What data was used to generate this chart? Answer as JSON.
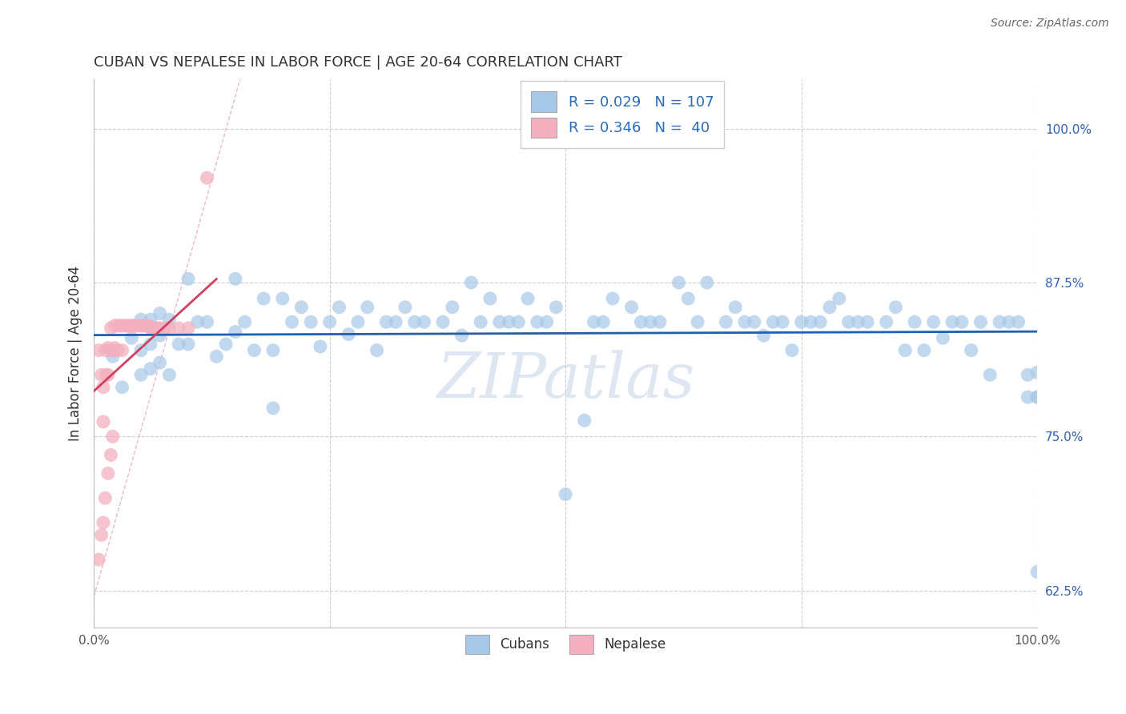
{
  "title": "CUBAN VS NEPALESE IN LABOR FORCE | AGE 20-64 CORRELATION CHART",
  "source_text": "Source: ZipAtlas.com",
  "ylabel": "In Labor Force | Age 20-64",
  "xlim": [
    0.0,
    1.0
  ],
  "ylim": [
    0.595,
    1.04
  ],
  "ytick_vals": [
    0.625,
    0.75,
    0.875,
    1.0
  ],
  "ytick_labels": [
    "62.5%",
    "75.0%",
    "87.5%",
    "100.0%"
  ],
  "blue_R": 0.029,
  "blue_N": 107,
  "pink_R": 0.346,
  "pink_N": 40,
  "blue_color": "#a8c8e8",
  "pink_color": "#f4b0c0",
  "blue_line_color": "#2060b0",
  "pink_line_color": "#d04060",
  "diag_line_color": "#e0a0b0",
  "legend_label_blue": "Cubans",
  "legend_label_pink": "Nepalese",
  "background_color": "#ffffff",
  "grid_color": "#cccccc",
  "watermark_color": "#c8d8e8",
  "blue_scatter_x": [
    0.02,
    0.03,
    0.04,
    0.05,
    0.05,
    0.05,
    0.06,
    0.06,
    0.06,
    0.07,
    0.07,
    0.07,
    0.08,
    0.08,
    0.09,
    0.1,
    0.1,
    0.11,
    0.12,
    0.13,
    0.14,
    0.15,
    0.15,
    0.16,
    0.17,
    0.18,
    0.19,
    0.19,
    0.2,
    0.21,
    0.22,
    0.23,
    0.24,
    0.25,
    0.26,
    0.27,
    0.28,
    0.29,
    0.3,
    0.31,
    0.32,
    0.33,
    0.34,
    0.35,
    0.37,
    0.38,
    0.39,
    0.4,
    0.41,
    0.42,
    0.43,
    0.44,
    0.45,
    0.46,
    0.47,
    0.48,
    0.49,
    0.5,
    0.52,
    0.53,
    0.54,
    0.55,
    0.57,
    0.58,
    0.59,
    0.6,
    0.62,
    0.63,
    0.64,
    0.65,
    0.67,
    0.68,
    0.69,
    0.7,
    0.71,
    0.72,
    0.73,
    0.74,
    0.75,
    0.76,
    0.77,
    0.78,
    0.79,
    0.8,
    0.81,
    0.82,
    0.84,
    0.85,
    0.86,
    0.87,
    0.88,
    0.89,
    0.9,
    0.91,
    0.92,
    0.93,
    0.94,
    0.95,
    0.96,
    0.97,
    0.98,
    0.99,
    0.99,
    1.0,
    1.0,
    1.0,
    1.0
  ],
  "blue_scatter_y": [
    0.815,
    0.79,
    0.83,
    0.8,
    0.82,
    0.845,
    0.805,
    0.825,
    0.845,
    0.81,
    0.832,
    0.85,
    0.8,
    0.845,
    0.825,
    0.878,
    0.825,
    0.843,
    0.843,
    0.815,
    0.825,
    0.835,
    0.878,
    0.843,
    0.82,
    0.862,
    0.82,
    0.773,
    0.862,
    0.843,
    0.855,
    0.843,
    0.823,
    0.843,
    0.855,
    0.833,
    0.843,
    0.855,
    0.82,
    0.843,
    0.843,
    0.855,
    0.843,
    0.843,
    0.843,
    0.855,
    0.832,
    0.875,
    0.843,
    0.862,
    0.843,
    0.843,
    0.843,
    0.862,
    0.843,
    0.843,
    0.855,
    0.703,
    0.763,
    0.843,
    0.843,
    0.862,
    0.855,
    0.843,
    0.843,
    0.843,
    0.875,
    0.862,
    0.843,
    0.875,
    0.843,
    0.855,
    0.843,
    0.843,
    0.832,
    0.843,
    0.843,
    0.82,
    0.843,
    0.843,
    0.843,
    0.855,
    0.862,
    0.843,
    0.843,
    0.843,
    0.843,
    0.855,
    0.82,
    0.843,
    0.82,
    0.843,
    0.83,
    0.843,
    0.843,
    0.82,
    0.843,
    0.8,
    0.843,
    0.843,
    0.843,
    0.782,
    0.8,
    0.782,
    0.802,
    0.782,
    0.64
  ],
  "pink_scatter_x": [
    0.005,
    0.008,
    0.01,
    0.01,
    0.012,
    0.013,
    0.015,
    0.015,
    0.018,
    0.018,
    0.02,
    0.022,
    0.022,
    0.025,
    0.025,
    0.028,
    0.03,
    0.03,
    0.033,
    0.035,
    0.038,
    0.04,
    0.04,
    0.042,
    0.045,
    0.048,
    0.05,
    0.052,
    0.055,
    0.058,
    0.06,
    0.062,
    0.065,
    0.068,
    0.07,
    0.075,
    0.08,
    0.09,
    0.1,
    0.12
  ],
  "pink_scatter_y": [
    0.82,
    0.8,
    0.79,
    0.762,
    0.82,
    0.8,
    0.822,
    0.8,
    0.838,
    0.82,
    0.82,
    0.84,
    0.822,
    0.84,
    0.82,
    0.84,
    0.84,
    0.82,
    0.84,
    0.84,
    0.84,
    0.84,
    0.84,
    0.84,
    0.84,
    0.84,
    0.84,
    0.84,
    0.84,
    0.84,
    0.838,
    0.838,
    0.838,
    0.838,
    0.838,
    0.838,
    0.838,
    0.838,
    0.838,
    0.96
  ],
  "pink_low_x": [
    0.005,
    0.008,
    0.01,
    0.012,
    0.015,
    0.018,
    0.02
  ],
  "pink_low_y": [
    0.65,
    0.67,
    0.68,
    0.7,
    0.72,
    0.735,
    0.75
  ]
}
